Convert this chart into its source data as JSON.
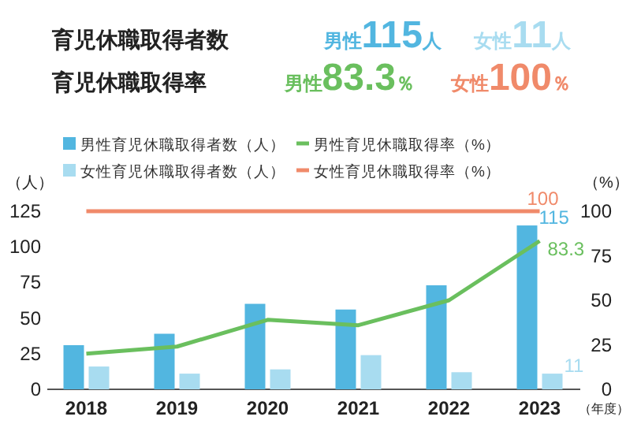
{
  "chart_data": {
    "type": "bar",
    "title": "育児休職取得者数",
    "subtitle": "育児休職取得率",
    "annotations": [
      "男性115人",
      "女性11人",
      "男性83.3％",
      "女性100％"
    ],
    "categories": [
      "2018",
      "2019",
      "2020",
      "2021",
      "2022",
      "2023"
    ],
    "xlabel": "（年度）",
    "ylabel": "（人）",
    "y2label": "（%）",
    "ylim": [
      0,
      125
    ],
    "yticks": [
      0,
      25,
      50,
      75,
      100,
      125
    ],
    "y2lim": [
      0,
      100
    ],
    "y2ticks": [
      0,
      25,
      50,
      75,
      100
    ],
    "legend": "top",
    "series": [
      {
        "name": "男性育児休職取得者数（人）",
        "color": "#52b6e0",
        "values": [
          31,
          39,
          60,
          56,
          73,
          115
        ],
        "value_labels": [
          null,
          null,
          null,
          null,
          null,
          "115"
        ]
      },
      {
        "name": "女性育児休職取得者数（人）",
        "color": "#a8dcf0",
        "values": [
          16,
          11,
          14,
          24,
          12,
          11
        ],
        "value_labels": [
          null,
          null,
          null,
          null,
          null,
          "11"
        ]
      },
      {
        "name": "男性育児休職取得率（%）",
        "type": "line",
        "axis": "y2",
        "color": "#6abf5e",
        "values": [
          20,
          24,
          39,
          36,
          50,
          83.3
        ],
        "value_labels": [
          null,
          null,
          null,
          null,
          null,
          "83.3"
        ]
      },
      {
        "name": "女性育児休職取得率（%）",
        "type": "line",
        "axis": "y2",
        "color": "#f08a6a",
        "values": [
          100,
          100,
          100,
          100,
          100,
          100
        ],
        "value_labels": [
          null,
          null,
          null,
          null,
          null,
          "100"
        ]
      }
    ]
  }
}
